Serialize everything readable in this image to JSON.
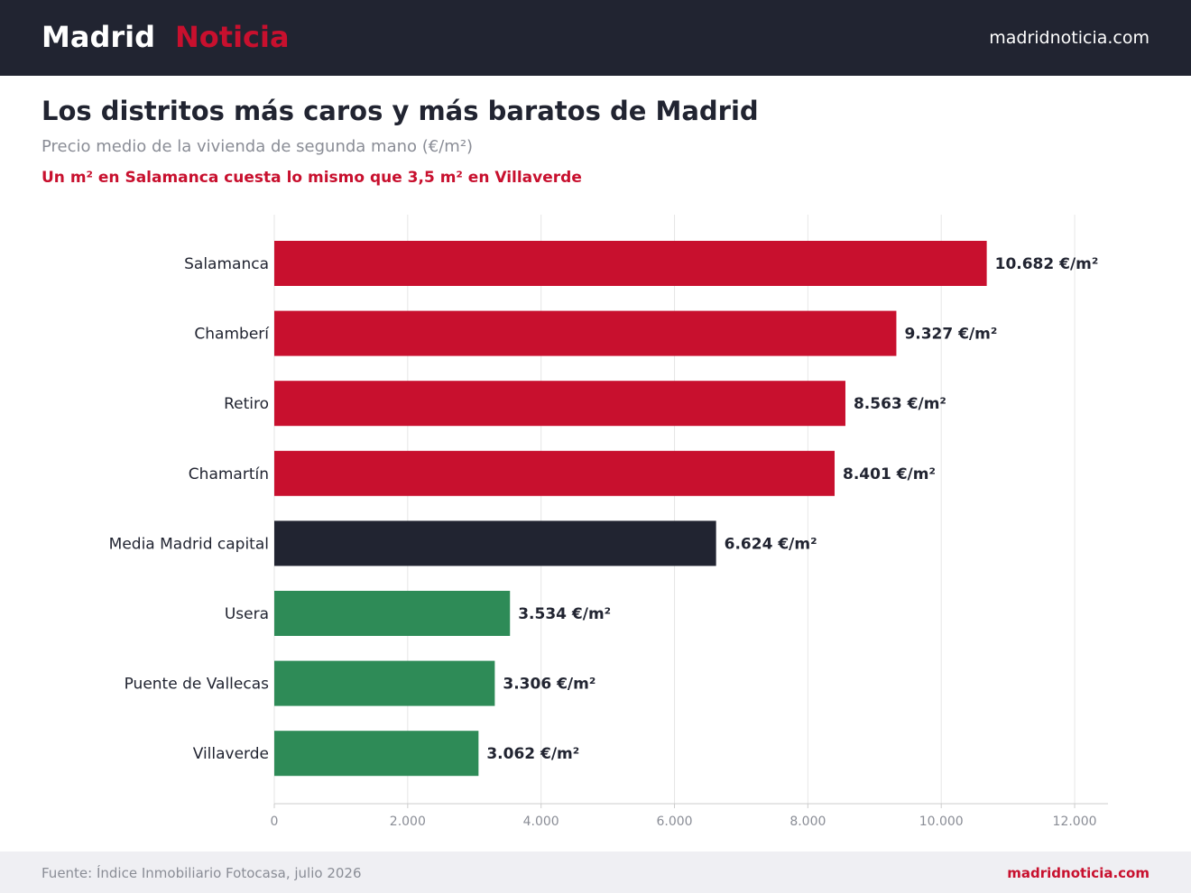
{
  "header": {
    "brand_first": "Madrid",
    "brand_second": "Noticia",
    "site_url": "madridnoticia.com"
  },
  "title": "Los distritos más caros y más baratos de Madrid",
  "subtitle": "Precio medio de la vivienda de segunda mano (€/m²)",
  "highlight": "Un m² en Salamanca cuesta lo mismo que 3,5 m² en Villaverde",
  "footer": {
    "source": "Fuente: Índice Inmobiliario Fotocasa, julio 2026",
    "site_url": "madridnoticia.com"
  },
  "colors": {
    "expensive": "#c8102e",
    "average": "#212431",
    "cheap": "#2e8b57",
    "grid": "#e6e6e6",
    "axis": "#cccccc",
    "tick_text": "#8a8d96",
    "label_text": "#212431"
  },
  "chart_data": {
    "type": "bar",
    "orientation": "horizontal",
    "categories": [
      "Salamanca",
      "Chamberí",
      "Retiro",
      "Chamartín",
      "Media Madrid capital",
      "Usera",
      "Puente de Vallecas",
      "Villaverde"
    ],
    "values": [
      10682,
      9327,
      8563,
      8401,
      6624,
      3534,
      3306,
      3062
    ],
    "data_labels": [
      "10.682 €/m²",
      "9.327 €/m²",
      "8.563 €/m²",
      "8.401 €/m²",
      "6.624 €/m²",
      "3.534 €/m²",
      "3.306 €/m²",
      "3.062 €/m²"
    ],
    "groups": [
      "expensive",
      "expensive",
      "expensive",
      "expensive",
      "average",
      "cheap",
      "cheap",
      "cheap"
    ],
    "xlim": [
      0,
      12500
    ],
    "xticks": [
      0,
      2000,
      4000,
      6000,
      8000,
      10000,
      12000
    ],
    "xtick_labels": [
      "0",
      "2.000",
      "4.000",
      "6.000",
      "8.000",
      "10.000",
      "12.000"
    ],
    "xlabel": "",
    "ylabel": "",
    "grid": "vertical"
  }
}
